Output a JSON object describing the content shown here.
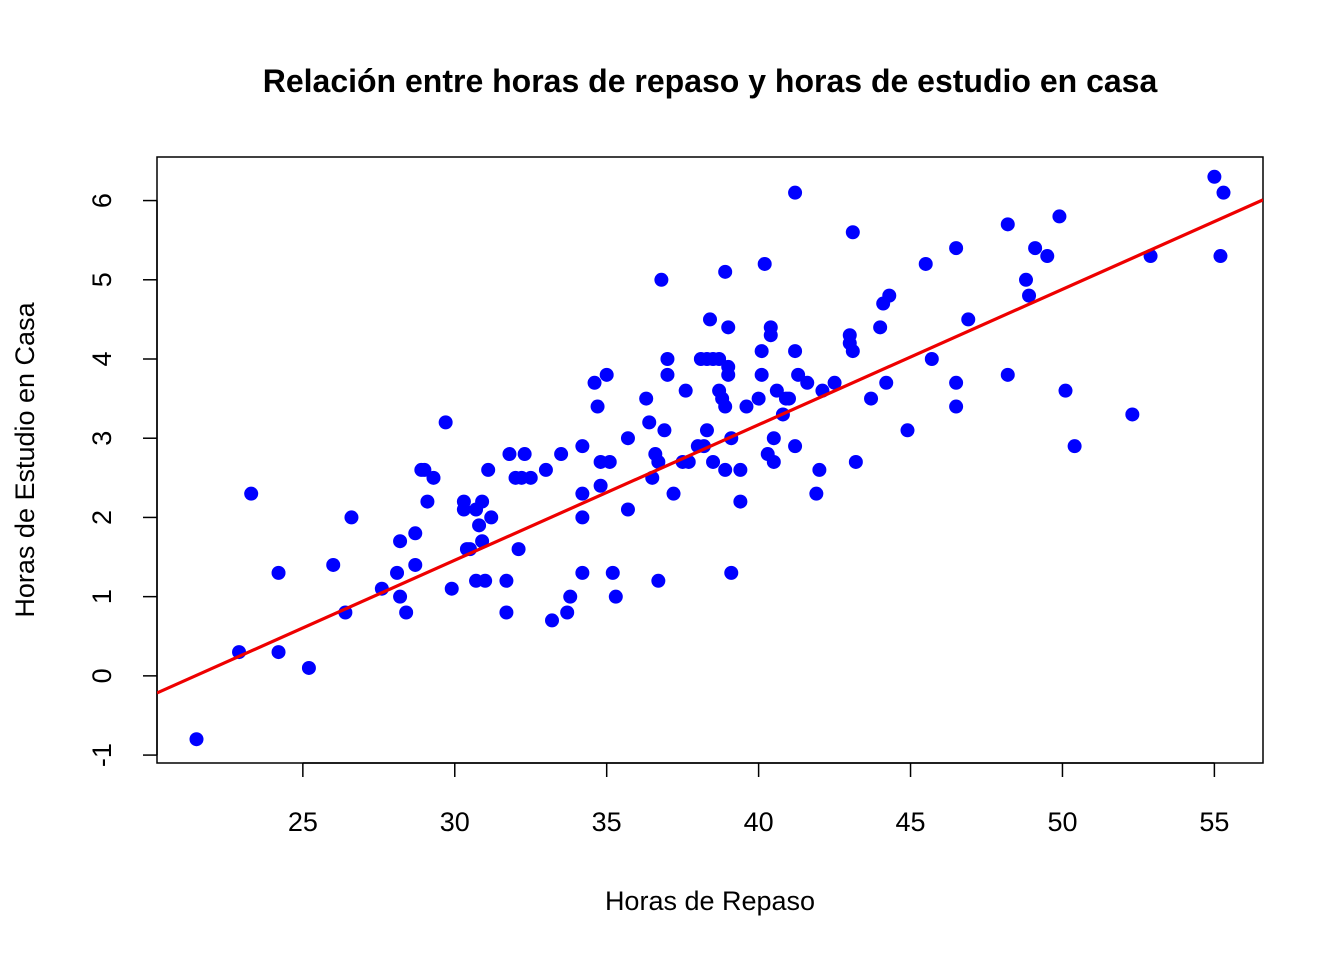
{
  "chart_data": {
    "type": "scatter",
    "title": "Relación entre horas de repaso y horas de estudio en casa",
    "xlabel": "Horas de Repaso",
    "ylabel": "Horas de Estudio en Casa",
    "xlim": [
      20.2,
      56.6
    ],
    "ylim": [
      -1.1,
      6.55
    ],
    "xticks": [
      "25",
      "30",
      "35",
      "40",
      "45",
      "50",
      "55"
    ],
    "yticks": [
      "-1",
      "0",
      "1",
      "2",
      "3",
      "4",
      "5",
      "6"
    ],
    "point_color": "#0000FF",
    "line_color": "#EE0000",
    "regression_line": {
      "intercept": -3.67,
      "slope": 0.171
    },
    "x": [
      21.5,
      22.9,
      23.3,
      24.2,
      24.2,
      25.2,
      26.0,
      26.4,
      26.6,
      27.6,
      28.1,
      28.2,
      28.2,
      28.4,
      28.7,
      28.7,
      28.9,
      29.0,
      29.1,
      29.3,
      29.7,
      29.9,
      30.3,
      30.3,
      30.4,
      30.5,
      30.7,
      30.7,
      30.8,
      30.9,
      30.9,
      31.0,
      31.1,
      31.2,
      31.7,
      31.7,
      31.8,
      32.0,
      32.1,
      32.2,
      32.3,
      32.5,
      33.0,
      33.2,
      33.5,
      33.7,
      33.8,
      34.2,
      34.2,
      34.2,
      34.2,
      34.6,
      34.7,
      34.8,
      34.8,
      35.0,
      35.1,
      35.2,
      35.3,
      35.7,
      35.7,
      36.3,
      36.4,
      36.5,
      36.6,
      36.7,
      36.7,
      36.8,
      36.9,
      37.0,
      37.0,
      37.2,
      37.5,
      37.6,
      37.7,
      38.0,
      38.1,
      38.2,
      38.3,
      38.3,
      38.4,
      38.5,
      38.5,
      38.7,
      38.7,
      38.8,
      38.9,
      38.9,
      38.9,
      39.0,
      39.0,
      39.0,
      39.1,
      39.1,
      39.4,
      39.4,
      39.6,
      40.0,
      40.1,
      40.1,
      40.2,
      40.3,
      40.4,
      40.4,
      40.5,
      40.5,
      40.6,
      40.8,
      40.9,
      41.0,
      41.2,
      41.2,
      41.2,
      41.3,
      41.6,
      41.9,
      42.0,
      42.1,
      42.5,
      43.0,
      43.0,
      43.1,
      43.1,
      43.2,
      43.7,
      44.0,
      44.1,
      44.2,
      44.3,
      44.9,
      45.5,
      45.7,
      46.5,
      46.5,
      46.5,
      46.9,
      48.2,
      48.2,
      48.8,
      48.9,
      49.1,
      49.5,
      49.9,
      50.1,
      50.4,
      52.3,
      52.9,
      55.0,
      55.2,
      55.3
    ],
    "y": [
      -0.8,
      0.3,
      2.3,
      0.3,
      1.3,
      0.1,
      1.4,
      0.8,
      2.0,
      1.1,
      1.3,
      1.0,
      1.7,
      0.8,
      1.4,
      1.8,
      2.6,
      2.6,
      2.2,
      2.5,
      3.2,
      1.1,
      2.1,
      2.2,
      1.6,
      1.6,
      2.1,
      1.2,
      1.9,
      1.7,
      2.2,
      1.2,
      2.6,
      2.0,
      1.2,
      0.8,
      2.8,
      2.5,
      1.6,
      2.5,
      2.8,
      2.5,
      2.6,
      0.7,
      2.8,
      0.8,
      1.0,
      2.0,
      2.3,
      1.3,
      2.9,
      3.7,
      3.4,
      2.4,
      2.7,
      3.8,
      2.7,
      1.3,
      1.0,
      2.1,
      3.0,
      3.5,
      3.2,
      2.5,
      2.8,
      2.7,
      1.2,
      5.0,
      3.1,
      3.8,
      4.0,
      2.3,
      2.7,
      3.6,
      2.7,
      2.9,
      4.0,
      2.9,
      3.1,
      4.0,
      4.5,
      2.7,
      4.0,
      3.6,
      4.0,
      3.5,
      5.1,
      3.4,
      2.6,
      3.8,
      3.9,
      4.4,
      3.0,
      1.3,
      2.2,
      2.6,
      3.4,
      3.5,
      4.1,
      3.8,
      5.2,
      2.8,
      4.4,
      4.3,
      3.0,
      2.7,
      3.6,
      3.3,
      3.5,
      3.5,
      4.1,
      2.9,
      6.1,
      3.8,
      3.7,
      2.3,
      2.6,
      3.6,
      3.7,
      4.2,
      4.3,
      5.6,
      4.1,
      2.7,
      3.5,
      4.4,
      4.7,
      3.7,
      4.8,
      3.1,
      5.2,
      4.0,
      3.7,
      3.4,
      5.4,
      4.5,
      5.7,
      3.8,
      5.0,
      4.8,
      5.4,
      5.3,
      5.8,
      3.6,
      2.9,
      3.3,
      5.3,
      6.3,
      5.3,
      6.1
    ]
  }
}
